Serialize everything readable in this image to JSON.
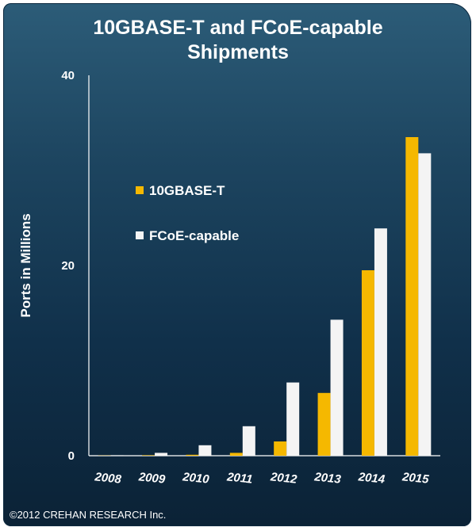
{
  "chart_data": {
    "type": "bar",
    "title": "10GBASE-T and FCoE-capable\nShipments",
    "ylabel": "Ports in Millions",
    "xlabel": "",
    "ylim": [
      0,
      40
    ],
    "yticks": [
      0,
      20,
      40
    ],
    "grid": false,
    "legend_position": "upper-left inside plot",
    "categories": [
      "2008",
      "2009",
      "2010",
      "2011",
      "2012",
      "2013",
      "2014",
      "2015"
    ],
    "series": [
      {
        "name": "10GBASE-T",
        "color": "#f5b800",
        "values": [
          0.02,
          0.05,
          0.1,
          0.3,
          1.5,
          6.6,
          19.5,
          33.5
        ]
      },
      {
        "name": "FCoE-capable",
        "color": "#f4f4f4",
        "values": [
          0.05,
          0.3,
          1.1,
          3.1,
          7.7,
          14.3,
          23.9,
          31.8
        ]
      }
    ]
  },
  "footer": {
    "copyright": "©2012 CREHAN RESEARCH Inc."
  },
  "colors": {
    "background": "#1b4058",
    "axis": "#ffffff"
  }
}
